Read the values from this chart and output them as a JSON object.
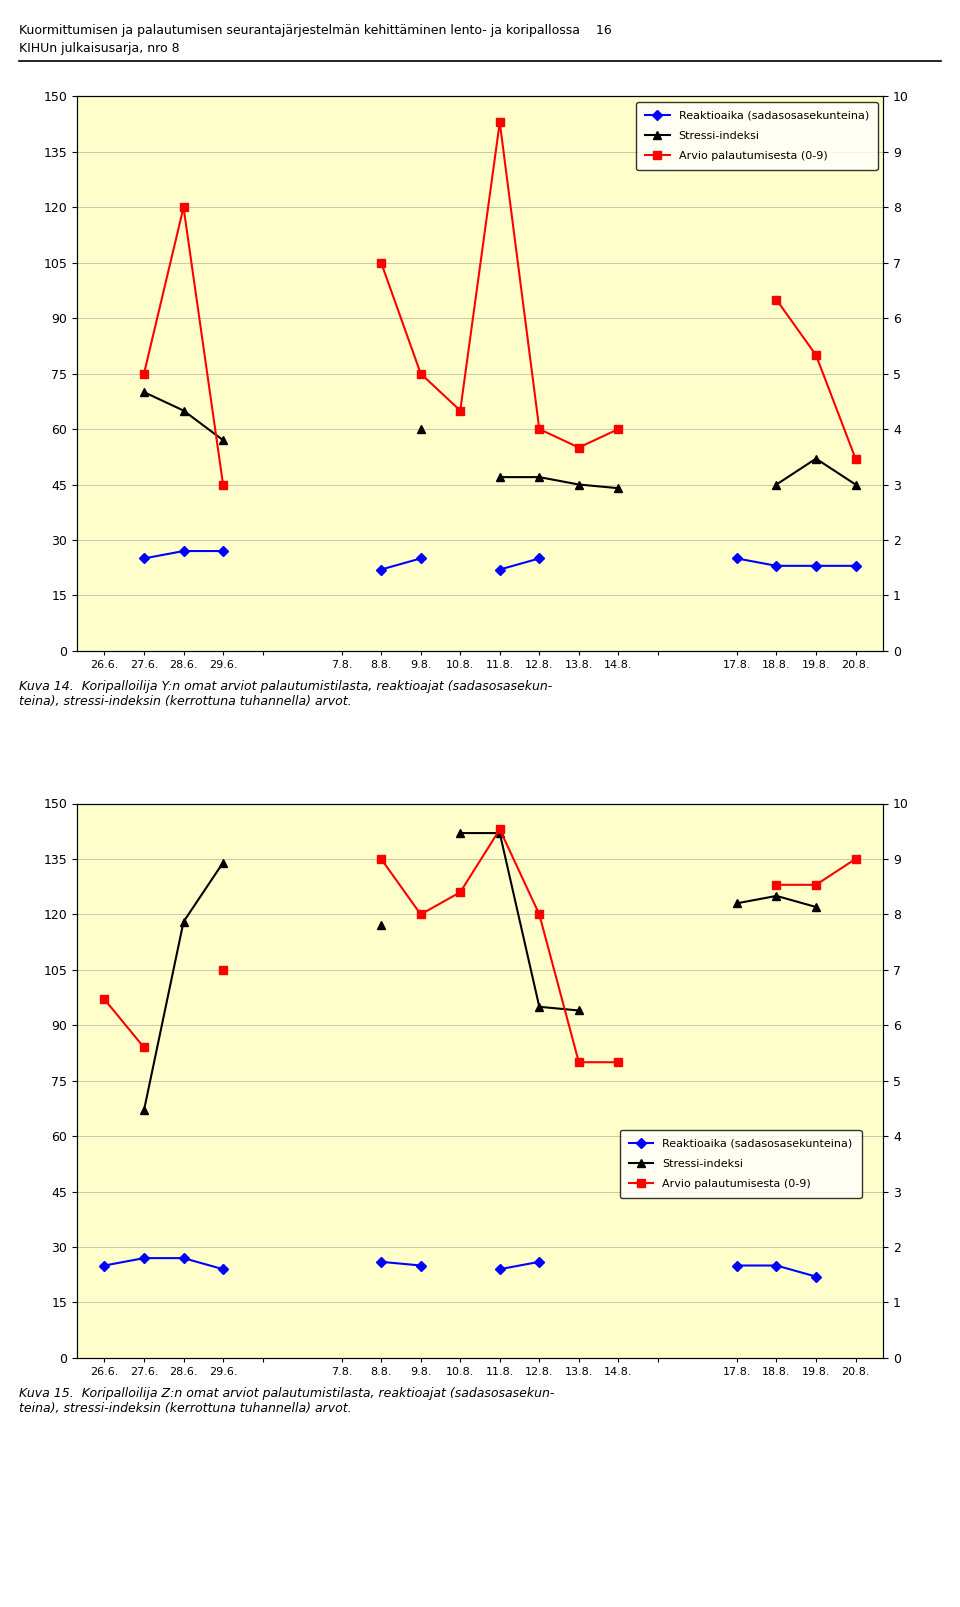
{
  "header_line1": "Kuormittumisen ja palautumisen seurantajärjestelmän kehittäminen lento- ja koripallossa    16",
  "header_line2": "KIHUn julkaisusarja, nro 8",
  "x_labels_full": [
    "26.6.",
    "27.6.",
    "28.6.",
    "29.6.",
    "",
    "7.8.",
    "8.8.",
    "9.8.",
    "10.8.",
    "11.8.",
    "12.8.",
    "13.8.",
    "14.8.",
    "",
    "17.8.",
    "18.8.",
    "19.8.",
    "20.8."
  ],
  "chart1_reak": [
    null,
    25,
    27,
    27,
    null,
    null,
    22,
    25,
    null,
    22,
    25,
    null,
    null,
    null,
    25,
    23,
    23,
    23
  ],
  "chart1_str": [
    null,
    70,
    65,
    57,
    null,
    null,
    null,
    60,
    null,
    47,
    47,
    45,
    44,
    null,
    null,
    45,
    52,
    45
  ],
  "chart1_arvio": [
    null,
    75,
    120,
    45,
    null,
    null,
    105,
    75,
    65,
    143,
    60,
    55,
    60,
    null,
    null,
    95,
    80,
    52
  ],
  "chart2_reak": [
    25,
    27,
    27,
    24,
    null,
    null,
    26,
    25,
    null,
    24,
    26,
    null,
    null,
    null,
    25,
    25,
    22,
    null
  ],
  "chart2_str": [
    null,
    67,
    118,
    134,
    null,
    null,
    117,
    null,
    142,
    142,
    95,
    94,
    null,
    null,
    123,
    125,
    122,
    null
  ],
  "chart2_arvio": [
    97,
    84,
    null,
    105,
    null,
    null,
    135,
    120,
    126,
    143,
    120,
    80,
    80,
    null,
    null,
    128,
    128,
    135
  ],
  "bg_color": "#ffffcc",
  "reaktioaika_color": "#0000ff",
  "stressi_color": "#000000",
  "arvio_color": "#ff0000",
  "yticks_left": [
    0,
    15,
    30,
    45,
    60,
    75,
    90,
    105,
    120,
    135,
    150
  ],
  "yticks_right": [
    0,
    1,
    2,
    3,
    4,
    5,
    6,
    7,
    8,
    9,
    10
  ],
  "caption1": "Kuva 14.  Koripalloilija Y:n omat arviot palautumistilasta, reaktioajat (sadasosasekun-\nteina), stressi-indeksin (kerrottuna tuhannella) arvot.",
  "caption2": "Kuva 15.  Koripalloilija Z:n omat arviot palautumistilasta, reaktioajat (sadasosasekun-\nteina), stressi-indeksin (kerrottuna tuhannella) arvot.",
  "legend_reaktioaika": "Reaktioaika (sadasosasekunteina)",
  "legend_stressi": "Stressi-indeksi",
  "legend_arvio": "Arvio palautumisesta (0-9)"
}
